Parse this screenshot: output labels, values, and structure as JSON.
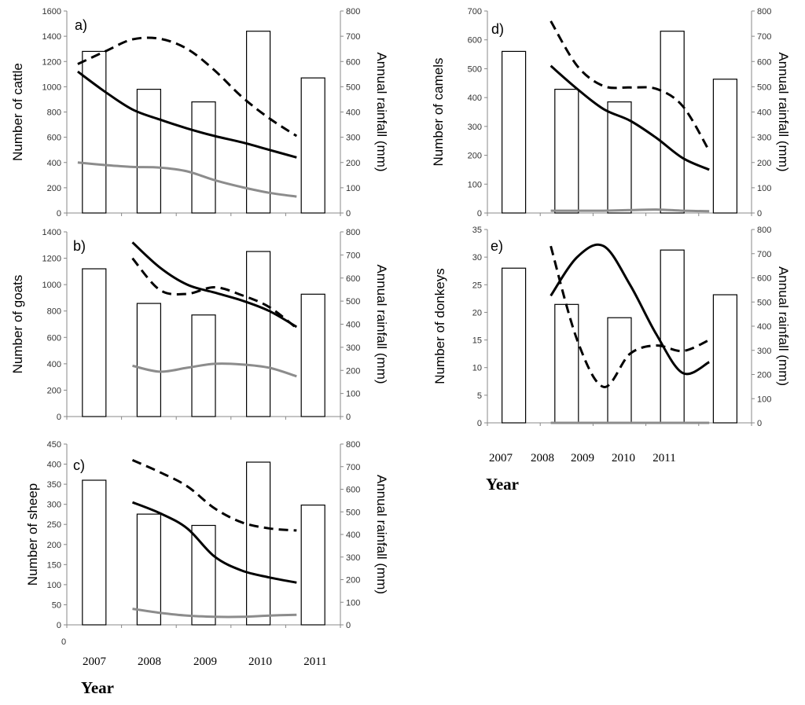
{
  "figure": {
    "year_title_left": "Year",
    "year_title_right": "Year",
    "year_ticks": [
      "2007",
      "2008",
      "2009",
      "2010",
      "2011"
    ],
    "stray_label": "0"
  },
  "chart_data": [
    {
      "type": "bar",
      "panel_label": "a)",
      "ylabel": "Number of cattle",
      "ylabel_right": "Annual rainfall (mm)",
      "ylim": [
        0,
        1600
      ],
      "yticks": [
        0,
        200,
        400,
        600,
        800,
        1000,
        1200,
        1400,
        1600
      ],
      "ylim_right": [
        0,
        800
      ],
      "yticks_right": [
        0,
        100,
        200,
        300,
        400,
        500,
        600,
        700,
        800
      ],
      "categories": [
        "2007",
        "2008",
        "2009",
        "2010",
        "2011"
      ],
      "rainfall_bars": [
        640,
        490,
        440,
        720,
        535
      ],
      "series": [
        {
          "name": "dashed",
          "x": [
            2006.7,
            2007.2,
            2007.7,
            2008.2,
            2008.7,
            2009.2,
            2009.7,
            2010.2,
            2010.7
          ],
          "values": [
            1180,
            1280,
            1375,
            1380,
            1300,
            1130,
            920,
            750,
            610
          ]
        },
        {
          "name": "black",
          "x": [
            2006.7,
            2007.2,
            2007.7,
            2008.2,
            2008.7,
            2009.2,
            2009.7,
            2010.2,
            2010.7
          ],
          "values": [
            1120,
            960,
            820,
            740,
            670,
            610,
            560,
            500,
            440
          ]
        },
        {
          "name": "grey",
          "x": [
            2006.7,
            2007.2,
            2007.7,
            2008.2,
            2008.7,
            2009.2,
            2009.7,
            2010.2,
            2010.7
          ],
          "values": [
            400,
            380,
            365,
            360,
            330,
            260,
            205,
            160,
            130
          ]
        }
      ]
    },
    {
      "type": "bar",
      "panel_label": "b)",
      "ylabel": "Number of goats",
      "ylabel_right": "Annual rainfall (mm)",
      "ylim": [
        0,
        1400
      ],
      "yticks": [
        0,
        200,
        400,
        600,
        800,
        1000,
        1200,
        1400
      ],
      "ylim_right": [
        0,
        800
      ],
      "yticks_right": [
        0,
        100,
        200,
        300,
        400,
        500,
        600,
        700,
        800
      ],
      "categories": [
        "2007",
        "2008",
        "2009",
        "2010",
        "2011"
      ],
      "rainfall_bars": [
        640,
        490,
        440,
        715,
        530
      ],
      "series": [
        {
          "name": "dashed",
          "x": [
            2007.7,
            2008.2,
            2008.7,
            2009.2,
            2009.7,
            2010.2,
            2010.7
          ],
          "values": [
            1200,
            960,
            930,
            980,
            920,
            830,
            670
          ]
        },
        {
          "name": "black",
          "x": [
            2007.7,
            2008.2,
            2008.7,
            2009.2,
            2009.7,
            2010.2,
            2010.7
          ],
          "values": [
            1320,
            1130,
            1000,
            940,
            880,
            800,
            680
          ]
        },
        {
          "name": "grey",
          "x": [
            2007.7,
            2008.2,
            2008.7,
            2009.2,
            2009.7,
            2010.2,
            2010.7
          ],
          "values": [
            385,
            340,
            370,
            400,
            395,
            370,
            305
          ]
        }
      ]
    },
    {
      "type": "bar",
      "panel_label": "c)",
      "ylabel": "Number of sheep",
      "ylabel_right": "Annual rainfall (mm)",
      "ylim": [
        0,
        450
      ],
      "yticks": [
        0,
        50,
        100,
        150,
        200,
        250,
        300,
        350,
        400,
        450
      ],
      "ylim_right": [
        0,
        800
      ],
      "yticks_right": [
        0,
        100,
        200,
        300,
        400,
        500,
        600,
        700,
        800
      ],
      "categories": [
        "2007",
        "2008",
        "2009",
        "2010",
        "2011"
      ],
      "rainfall_bars": [
        640,
        490,
        440,
        720,
        530
      ],
      "series": [
        {
          "name": "dashed",
          "x": [
            2007.7,
            2008.2,
            2008.7,
            2009.2,
            2009.7,
            2010.2,
            2010.7
          ],
          "values": [
            410,
            380,
            345,
            290,
            255,
            240,
            235
          ]
        },
        {
          "name": "black",
          "x": [
            2007.7,
            2008.2,
            2008.7,
            2009.2,
            2009.7,
            2010.2,
            2010.7
          ],
          "values": [
            305,
            278,
            240,
            170,
            135,
            118,
            105
          ]
        },
        {
          "name": "grey",
          "x": [
            2007.7,
            2008.2,
            2008.7,
            2009.2,
            2009.7,
            2010.2,
            2010.7
          ],
          "values": [
            40,
            30,
            23,
            20,
            20,
            23,
            25
          ]
        }
      ]
    },
    {
      "type": "bar",
      "panel_label": "d)",
      "ylabel": "Number of camels",
      "ylabel_right": "Annual rainfall (mm)",
      "ylim": [
        0,
        700
      ],
      "yticks": [
        0,
        100,
        200,
        300,
        400,
        500,
        600,
        700
      ],
      "ylim_right": [
        0,
        800
      ],
      "yticks_right": [
        0,
        100,
        200,
        300,
        400,
        500,
        600,
        700,
        800
      ],
      "categories": [
        "2007",
        "2008",
        "2009",
        "2010",
        "2011"
      ],
      "rainfall_bars": [
        640,
        490,
        440,
        720,
        530
      ],
      "series": [
        {
          "name": "dashed",
          "x": [
            2007.7,
            2008.2,
            2008.7,
            2009.2,
            2009.7,
            2010.2,
            2010.7
          ],
          "values": [
            665,
            510,
            440,
            435,
            430,
            370,
            215
          ]
        },
        {
          "name": "black",
          "x": [
            2007.7,
            2008.2,
            2008.7,
            2009.2,
            2009.7,
            2010.2,
            2010.7
          ],
          "values": [
            510,
            430,
            360,
            320,
            260,
            190,
            150
          ]
        },
        {
          "name": "grey",
          "x": [
            2007.7,
            2008.2,
            2008.7,
            2009.2,
            2009.7,
            2010.2,
            2010.7
          ],
          "values": [
            8,
            8,
            8,
            10,
            12,
            8,
            6
          ]
        }
      ]
    },
    {
      "type": "bar",
      "panel_label": "e)",
      "ylabel": "Number of donkeys",
      "ylabel_right": "Annual rainfall (mm)",
      "ylim": [
        0,
        35
      ],
      "yticks": [
        0,
        5,
        10,
        15,
        20,
        25,
        30,
        35
      ],
      "ylim_right": [
        0,
        800
      ],
      "yticks_right": [
        0,
        100,
        200,
        300,
        400,
        500,
        600,
        700,
        800
      ],
      "categories": [
        "2007",
        "2008",
        "2009",
        "2010",
        "2011"
      ],
      "rainfall_bars": [
        640,
        490,
        435,
        715,
        530
      ],
      "series": [
        {
          "name": "dashed",
          "x": [
            2007.7,
            2008.2,
            2008.7,
            2009.2,
            2009.7,
            2010.2,
            2010.7
          ],
          "values": [
            32,
            15,
            6.5,
            12.5,
            14,
            13,
            15
          ]
        },
        {
          "name": "black",
          "x": [
            2007.7,
            2008.2,
            2008.7,
            2009.2,
            2009.7,
            2010.2,
            2010.7
          ],
          "values": [
            23,
            30,
            32,
            25,
            16,
            9,
            11
          ]
        },
        {
          "name": "grey",
          "x": [
            2007.7,
            2010.7
          ],
          "values": [
            0,
            0
          ]
        }
      ]
    }
  ]
}
